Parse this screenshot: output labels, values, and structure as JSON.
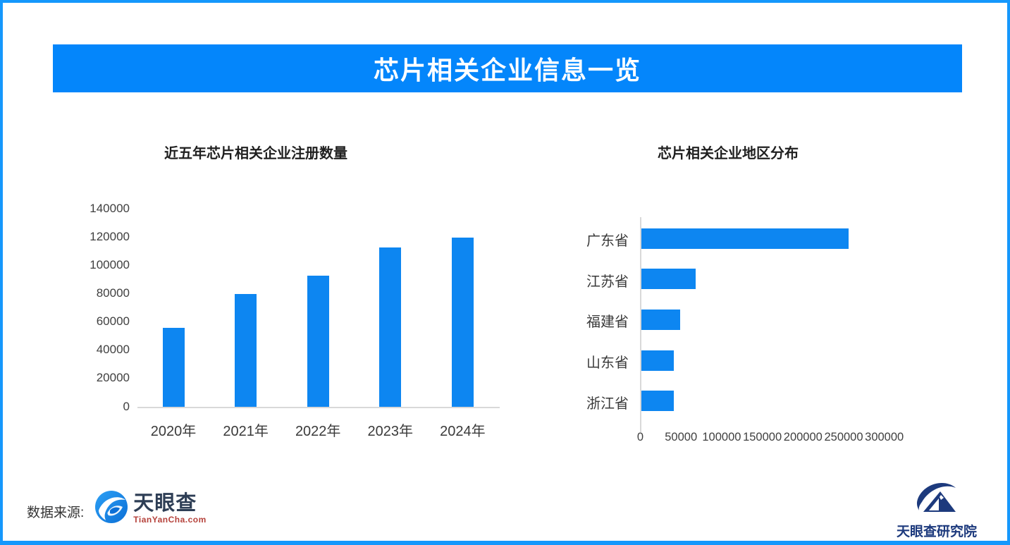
{
  "page": {
    "border_color": "#1598fc",
    "background": "#ffffff"
  },
  "header": {
    "title": "芯片相关企业信息一览",
    "bg_color": "#0486fb",
    "text_color": "#ffffff"
  },
  "chart_data": [
    {
      "type": "bar",
      "orientation": "vertical",
      "title": "近五年芯片相关企业注册数量",
      "categories": [
        "2020年",
        "2021年",
        "2022年",
        "2023年",
        "2024年"
      ],
      "values": [
        56000,
        80000,
        93000,
        113000,
        120000
      ],
      "xlabel": "",
      "ylabel": "",
      "ylim": [
        0,
        140000
      ],
      "ytick_step": 20000,
      "ytick_labels": [
        "0",
        "20000",
        "40000",
        "60000",
        "80000",
        "100000",
        "120000",
        "140000"
      ],
      "bar_color": "#0d86f1",
      "grid": false,
      "legend": "none"
    },
    {
      "type": "bar",
      "orientation": "horizontal",
      "title": "芯片相关企业地区分布",
      "categories": [
        "广东省",
        "江苏省",
        "福建省",
        "山东省",
        "浙江省"
      ],
      "values": [
        255000,
        67000,
        48000,
        40000,
        40000
      ],
      "xlabel": "",
      "ylabel": "",
      "xlim": [
        0,
        300000
      ],
      "xtick_step": 50000,
      "xtick_labels": [
        "0",
        "50000",
        "100000",
        "150000",
        "200000",
        "250000",
        "300000"
      ],
      "bar_color": "#0d86f1",
      "grid": false,
      "legend": "none"
    }
  ],
  "footer": {
    "source_label": "数据来源:",
    "tianyancha": {
      "name": "天眼查",
      "domain": "TianYanCha.com",
      "icon_color": "#1286e9"
    },
    "institute": {
      "name": "天眼查研究院",
      "icon_color": "#1d3a7d"
    }
  }
}
